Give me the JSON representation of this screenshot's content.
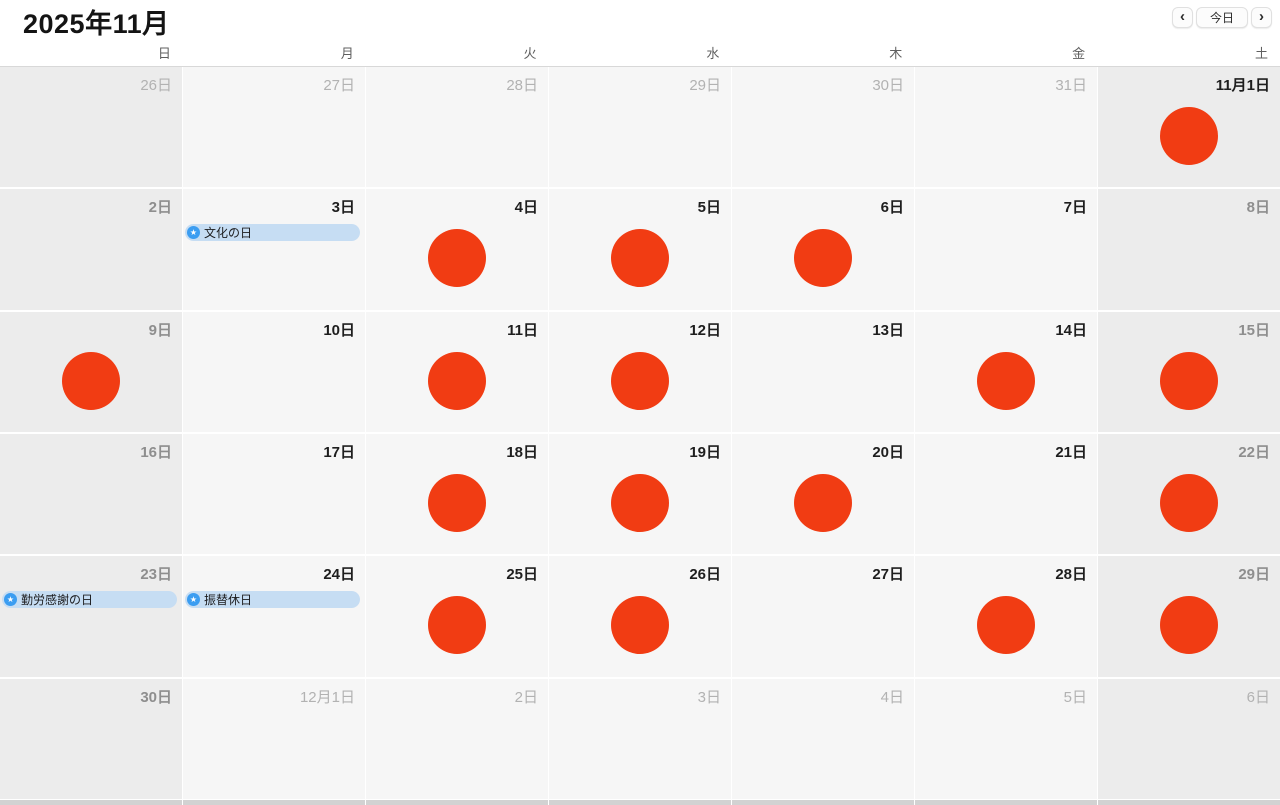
{
  "header": {
    "title": "2025年11月",
    "today_button": "今日",
    "prev_icon": "‹",
    "next_icon": "›"
  },
  "weekdays": [
    "日",
    "月",
    "火",
    "水",
    "木",
    "金",
    "土"
  ],
  "colors": {
    "event_circle": "#f13c13",
    "pill_bg": "#c6ddf3",
    "pill_icon_bg": "#3b9df1",
    "pill_text": "#1c1c1e",
    "weekend_cell": "#ececec",
    "weekday_cell": "#f6f6f6"
  },
  "pill_icon_glyph": "★",
  "weeks": [
    [
      {
        "label": "26日",
        "style": "out"
      },
      {
        "label": "27日",
        "style": "out"
      },
      {
        "label": "28日",
        "style": "out"
      },
      {
        "label": "29日",
        "style": "out"
      },
      {
        "label": "30日",
        "style": "out"
      },
      {
        "label": "31日",
        "style": "out"
      },
      {
        "label": "11月1日",
        "style": "dark",
        "circle": true
      }
    ],
    [
      {
        "label": "2日",
        "style": "gray"
      },
      {
        "label": "3日",
        "style": "dark",
        "event": "文化の日"
      },
      {
        "label": "4日",
        "style": "dark",
        "circle": true
      },
      {
        "label": "5日",
        "style": "dark",
        "circle": true
      },
      {
        "label": "6日",
        "style": "dark",
        "circle": true
      },
      {
        "label": "7日",
        "style": "dark"
      },
      {
        "label": "8日",
        "style": "gray"
      }
    ],
    [
      {
        "label": "9日",
        "style": "gray",
        "circle": true
      },
      {
        "label": "10日",
        "style": "dark"
      },
      {
        "label": "11日",
        "style": "dark",
        "circle": true
      },
      {
        "label": "12日",
        "style": "dark",
        "circle": true
      },
      {
        "label": "13日",
        "style": "dark"
      },
      {
        "label": "14日",
        "style": "dark",
        "circle": true
      },
      {
        "label": "15日",
        "style": "gray",
        "circle": true
      }
    ],
    [
      {
        "label": "16日",
        "style": "gray"
      },
      {
        "label": "17日",
        "style": "dark"
      },
      {
        "label": "18日",
        "style": "dark",
        "circle": true
      },
      {
        "label": "19日",
        "style": "dark",
        "circle": true
      },
      {
        "label": "20日",
        "style": "dark",
        "circle": true
      },
      {
        "label": "21日",
        "style": "dark"
      },
      {
        "label": "22日",
        "style": "gray",
        "circle": true
      }
    ],
    [
      {
        "label": "23日",
        "style": "gray",
        "event": "勤労感謝の日"
      },
      {
        "label": "24日",
        "style": "dark",
        "event": "振替休日"
      },
      {
        "label": "25日",
        "style": "dark",
        "circle": true
      },
      {
        "label": "26日",
        "style": "dark",
        "circle": true
      },
      {
        "label": "27日",
        "style": "dark"
      },
      {
        "label": "28日",
        "style": "dark",
        "circle": true
      },
      {
        "label": "29日",
        "style": "gray",
        "circle": true
      }
    ],
    [
      {
        "label": "30日",
        "style": "gray"
      },
      {
        "label": "12月1日",
        "style": "out"
      },
      {
        "label": "2日",
        "style": "out"
      },
      {
        "label": "3日",
        "style": "out"
      },
      {
        "label": "4日",
        "style": "out"
      },
      {
        "label": "5日",
        "style": "out"
      },
      {
        "label": "6日",
        "style": "out"
      }
    ]
  ]
}
